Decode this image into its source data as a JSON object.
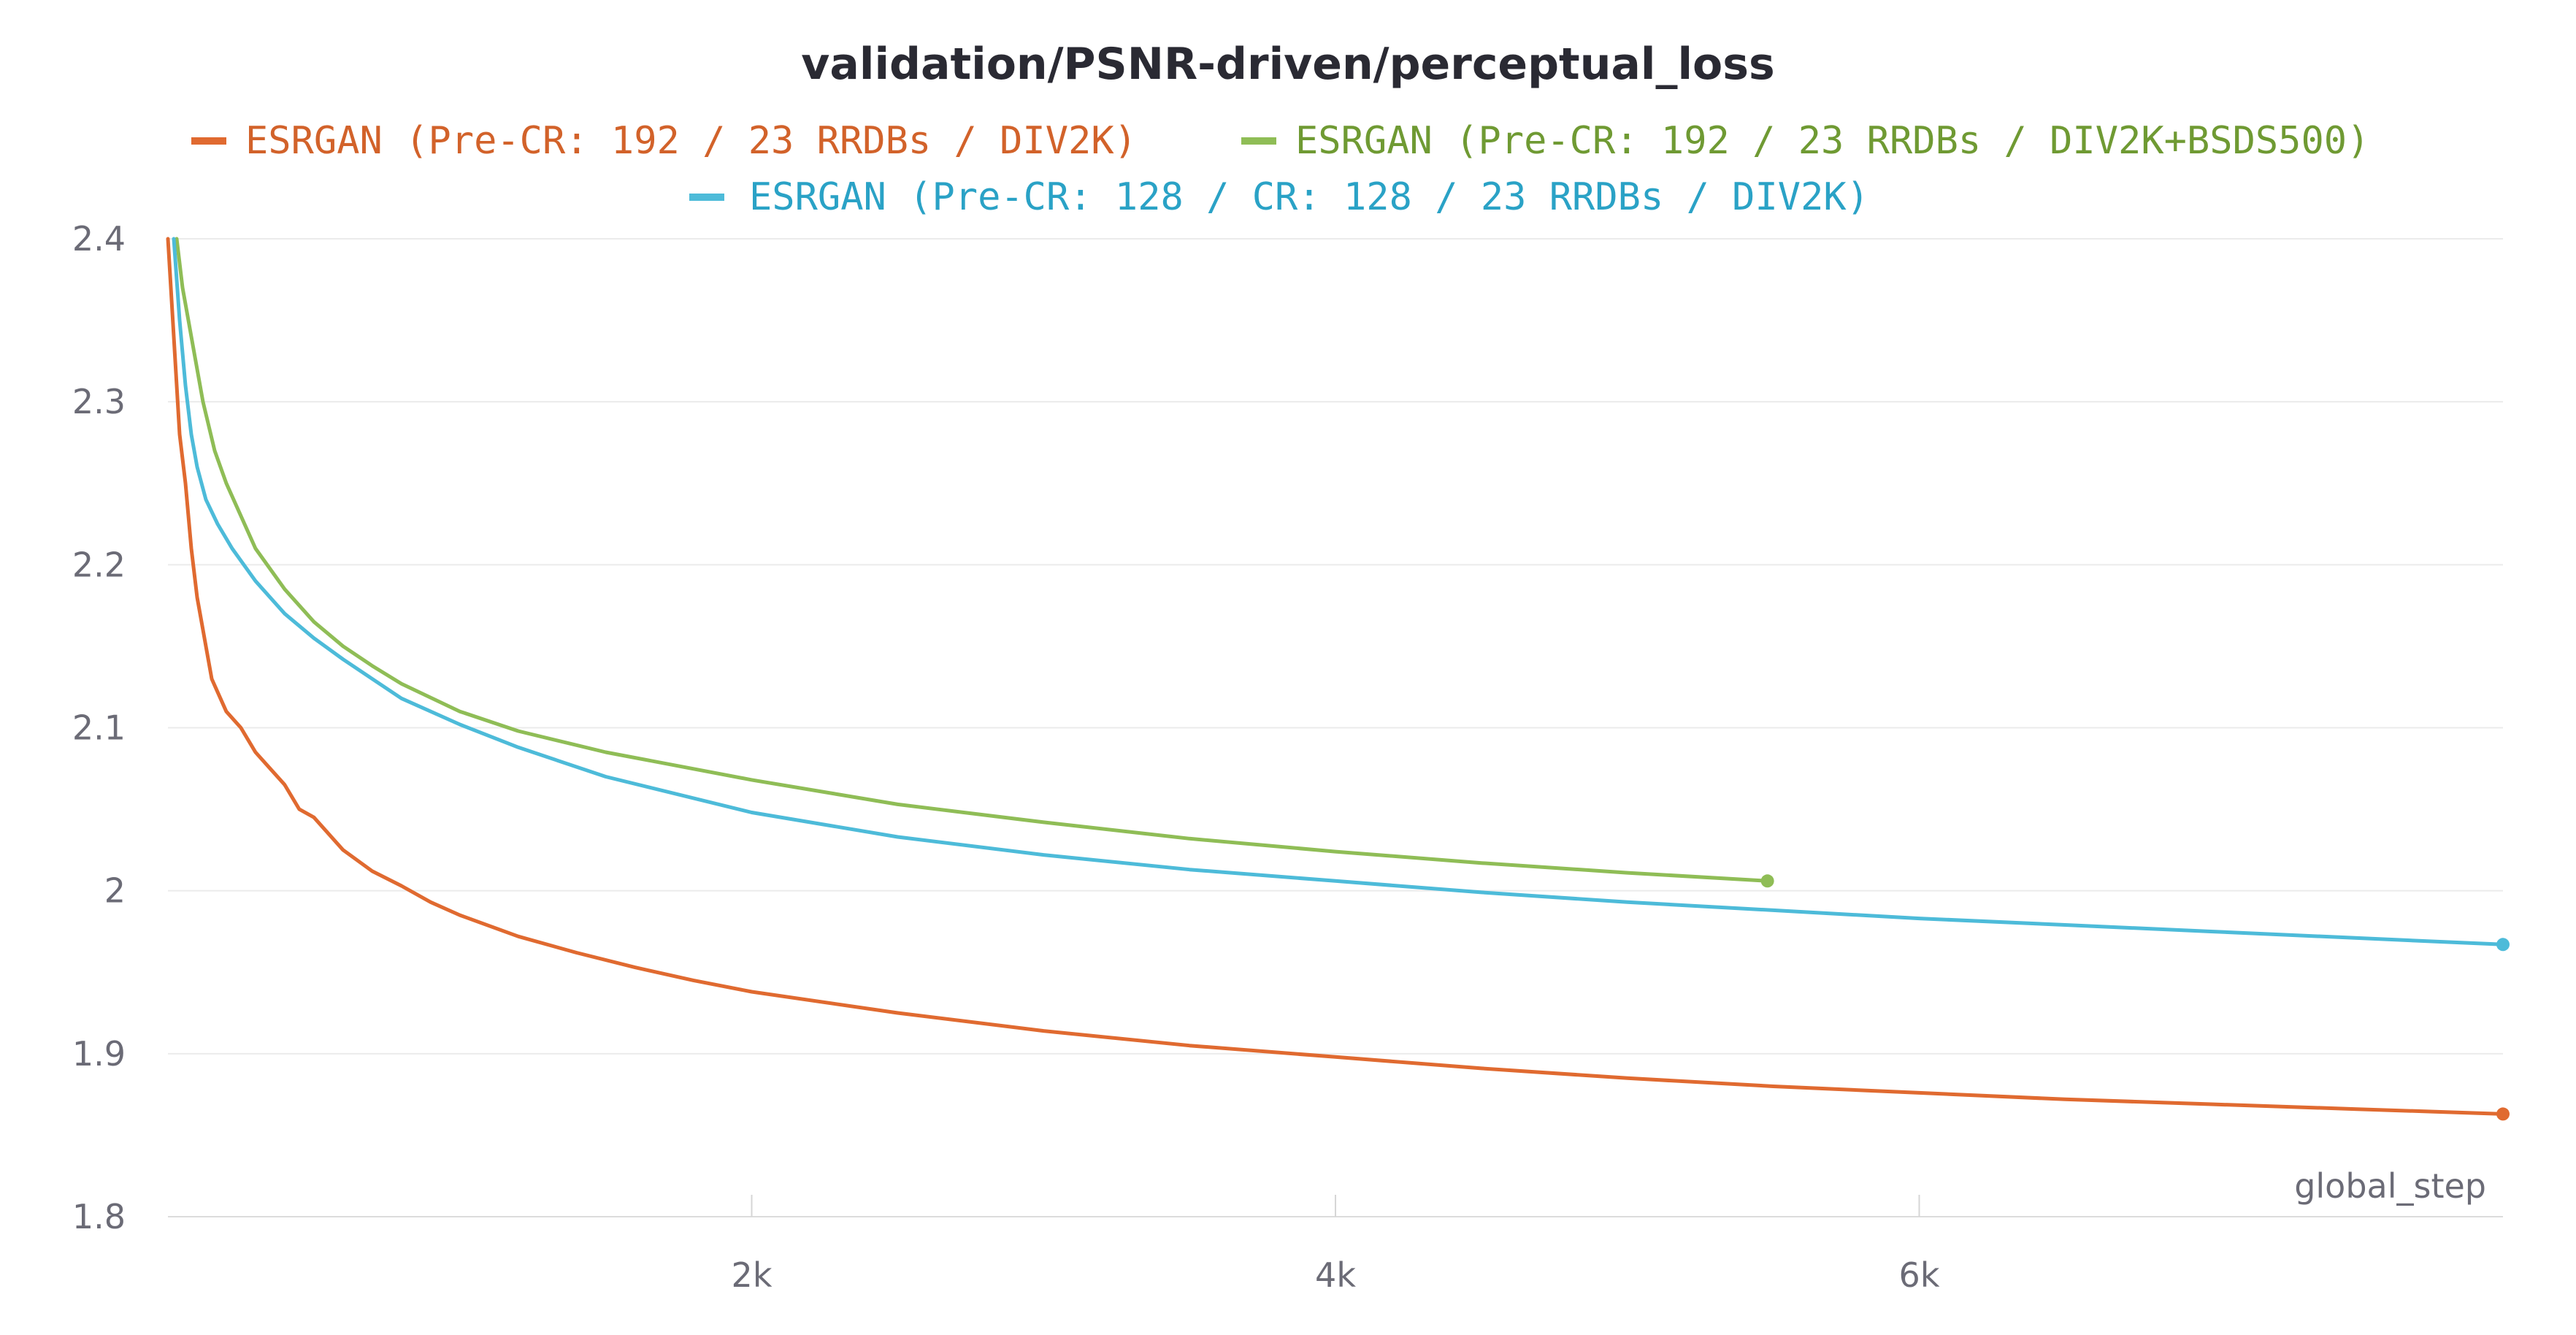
{
  "chart_data": {
    "type": "line",
    "title": "validation/PSNR-driven/perceptual_loss",
    "xlabel": "global_step",
    "ylabel": "",
    "xlim": [
      0,
      8000
    ],
    "ylim": [
      1.8,
      2.4
    ],
    "x_ticks": [
      2000,
      4000,
      6000
    ],
    "x_tick_labels": [
      "2k",
      "4k",
      "6k"
    ],
    "y_ticks": [
      1.8,
      1.9,
      2.0,
      2.1,
      2.2,
      2.3,
      2.4
    ],
    "y_tick_labels": [
      "1.8",
      "1.9",
      "2",
      "2.1",
      "2.2",
      "2.3",
      "2.4"
    ],
    "grid": true,
    "legend_position": "top-center",
    "series": [
      {
        "name": "ESRGAN (Pre-CR: 192 / 23 RRDBs / DIV2K)",
        "color": "#e06a30",
        "x": [
          0,
          20,
          40,
          60,
          80,
          100,
          120,
          150,
          200,
          250,
          300,
          350,
          400,
          450,
          500,
          550,
          600,
          700,
          800,
          900,
          1000,
          1200,
          1400,
          1600,
          1800,
          2000,
          2500,
          3000,
          3500,
          4000,
          4500,
          5000,
          5500,
          6000,
          6500,
          7000,
          7500,
          8000
        ],
        "y": [
          2.4,
          2.34,
          2.28,
          2.25,
          2.21,
          2.18,
          2.16,
          2.13,
          2.11,
          2.1,
          2.085,
          2.075,
          2.065,
          2.05,
          2.045,
          2.035,
          2.025,
          2.012,
          2.003,
          1.993,
          1.985,
          1.972,
          1.962,
          1.953,
          1.945,
          1.938,
          1.925,
          1.914,
          1.905,
          1.898,
          1.891,
          1.885,
          1.88,
          1.876,
          1.872,
          1.869,
          1.866,
          1.863
        ]
      },
      {
        "name": "ESRGAN (Pre-CR: 192 / 23 RRDBs / DIV2K+BSDS500)",
        "color": "#8fbd56",
        "x": [
          30,
          50,
          80,
          120,
          160,
          200,
          250,
          300,
          400,
          500,
          600,
          700,
          800,
          1000,
          1200,
          1500,
          2000,
          2500,
          3000,
          3500,
          4000,
          4500,
          5000,
          5480
        ],
        "y": [
          2.4,
          2.37,
          2.34,
          2.3,
          2.27,
          2.25,
          2.23,
          2.21,
          2.185,
          2.165,
          2.15,
          2.138,
          2.127,
          2.11,
          2.098,
          2.085,
          2.068,
          2.053,
          2.042,
          2.032,
          2.024,
          2.017,
          2.011,
          2.006
        ]
      },
      {
        "name": "ESRGAN (Pre-CR: 128 / CR: 128 / 23 RRDBs / DIV2K)",
        "color": "#4dbbd9",
        "x": [
          20,
          40,
          60,
          80,
          100,
          130,
          170,
          220,
          300,
          400,
          500,
          600,
          700,
          800,
          1000,
          1200,
          1500,
          2000,
          2500,
          3000,
          3500,
          4000,
          4500,
          5000,
          5500,
          6000,
          6500,
          7000,
          7500,
          8000
        ],
        "y": [
          2.4,
          2.35,
          2.31,
          2.28,
          2.26,
          2.24,
          2.225,
          2.21,
          2.19,
          2.17,
          2.155,
          2.142,
          2.13,
          2.118,
          2.102,
          2.088,
          2.07,
          2.048,
          2.033,
          2.022,
          2.013,
          2.006,
          1.999,
          1.993,
          1.988,
          1.983,
          1.979,
          1.975,
          1.971,
          1.967
        ]
      }
    ]
  }
}
